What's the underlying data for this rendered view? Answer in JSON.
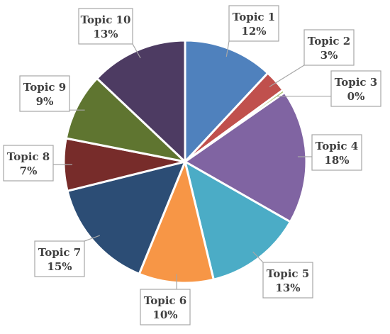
{
  "chart_data": {
    "type": "pie",
    "title": "",
    "categories": [
      "Topic 1",
      "Topic 2",
      "Topic 3",
      "Topic 4",
      "Topic 5",
      "Topic 6",
      "Topic 7",
      "Topic 8",
      "Topic 9",
      "Topic 10"
    ],
    "values": [
      12,
      3,
      0.4,
      18,
      13,
      10,
      15,
      7,
      9,
      13
    ],
    "labels": [
      "12%",
      "3%",
      "0%",
      "18%",
      "13%",
      "10%",
      "15%",
      "7%",
      "9%",
      "13%"
    ],
    "colors": [
      "#4f81bd",
      "#c0504d",
      "#9bbb59",
      "#8064a2",
      "#4bacc6",
      "#f79646",
      "#2c4d75",
      "#772c2a",
      "#5f7530",
      "#4d3b62"
    ],
    "start": "12 o'clock, clockwise",
    "legend": "none (callout data labels)"
  }
}
